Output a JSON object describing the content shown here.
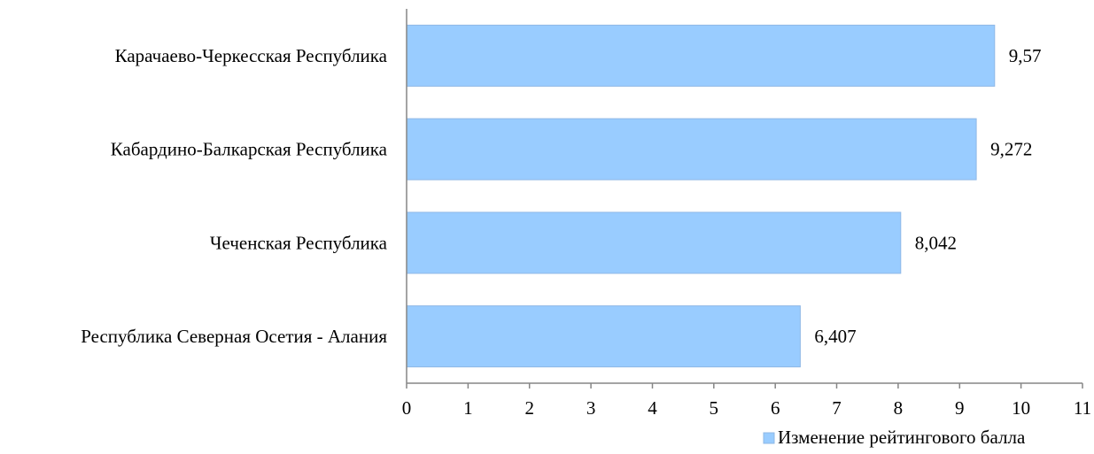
{
  "chart_data": {
    "type": "bar",
    "orientation": "horizontal",
    "categories": [
      "Карачаево-Черкесская Республика",
      "Кабардино-Балкарская Республика",
      "Чеченская Республика",
      "Республика Северная Осетия - Алания"
    ],
    "series": [
      {
        "name": "Изменение рейтингового балла",
        "values": [
          9.57,
          9.272,
          8.042,
          6.407
        ],
        "labels": [
          "9,57",
          "9,272",
          "8,042",
          "6,407"
        ]
      }
    ],
    "xlim": [
      0,
      11
    ],
    "xticks": [
      "0",
      "1",
      "2",
      "3",
      "4",
      "5",
      "6",
      "7",
      "8",
      "9",
      "10",
      "11"
    ],
    "grid": false,
    "legend_position": "bottom-right",
    "colors": {
      "bar_fill": "#99ccff",
      "bar_stroke": "#8fb8e6",
      "axis": "#868686",
      "text": "#000000"
    }
  }
}
